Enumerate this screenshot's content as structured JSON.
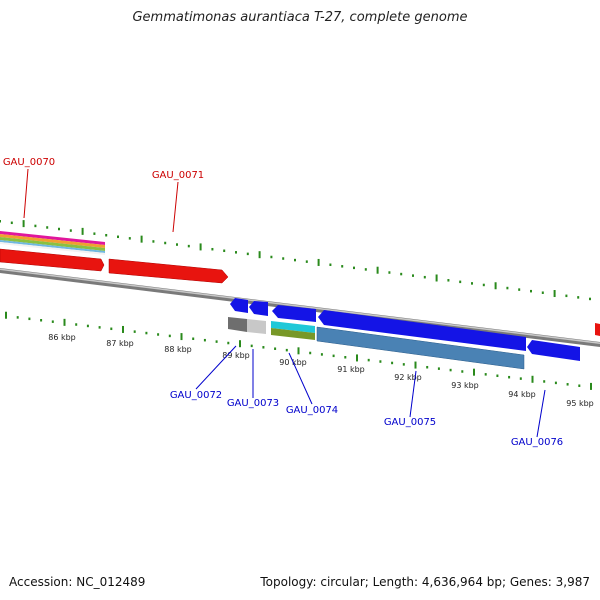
{
  "title": "Gemmatimonas aurantiaca T-27, complete genome",
  "footer": {
    "accession": "Accession: NC_012489",
    "summary": "Topology: circular; Length: 4,636,964 bp; Genes: 3,987"
  },
  "colors": {
    "forward_gene": "#e8140f",
    "reverse_gene": "#1414e6",
    "forward_label": "#cc0000",
    "reverse_label": "#0000cc",
    "tick": "#2a8a1c",
    "backbone": "#8a8a8a"
  },
  "scale_labels": [
    "86 kbp",
    "87 kbp",
    "88 kbp",
    "89 kbp",
    "90 kbp",
    "91 kbp",
    "92 kbp",
    "93 kbp",
    "94 kbp",
    "95 kbp"
  ],
  "forward_genes": [
    {
      "label": "GAU_0070"
    },
    {
      "label": "GAU_0071"
    }
  ],
  "reverse_genes": [
    {
      "label": "GAU_0072"
    },
    {
      "label": "GAU_0073"
    },
    {
      "label": "GAU_0074"
    },
    {
      "label": "GAU_0075"
    },
    {
      "label": "GAU_0076"
    }
  ]
}
